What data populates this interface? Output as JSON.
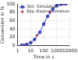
{
  "chart_data": {
    "type": "line",
    "x_label": "Time in s",
    "y_label": "Conversion in %",
    "xlim": [
      1,
      10000
    ],
    "xticks": [
      1,
      10,
      100,
      1000,
      10000
    ],
    "ylim": [
      0,
      100
    ],
    "yticks": [
      0,
      20,
      40,
      60,
      80,
      100
    ],
    "log": "x",
    "grid": true,
    "legend": "upper left",
    "series": [
      {
        "name": "Sim. Simulation",
        "color": "#3344bb",
        "marker": "circle",
        "line_style": "solid",
        "x": [
          2,
          5,
          10,
          20,
          50,
          100,
          200,
          500,
          1000,
          2000,
          5000
        ],
        "values": [
          1,
          3,
          7,
          15,
          32,
          52,
          70,
          88,
          96,
          99,
          100
        ]
      },
      {
        "name": "Exp. Experimentation",
        "color": "#cc3366",
        "marker": "triangle",
        "line_style": "none",
        "x": [
          3,
          10,
          30,
          100,
          300,
          1000,
          3000
        ],
        "values": [
          2,
          8,
          25,
          50,
          80,
          95,
          99
        ]
      }
    ]
  }
}
